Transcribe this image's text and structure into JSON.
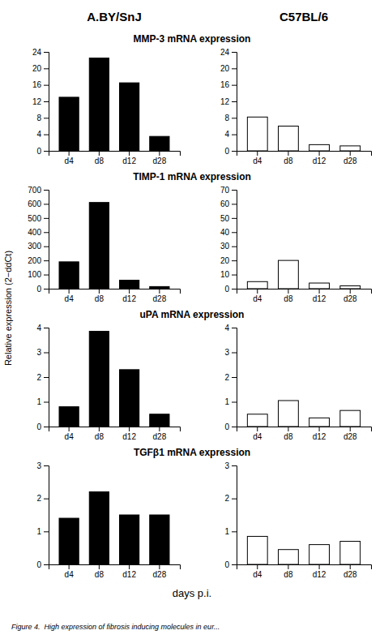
{
  "chart_data": [
    {
      "type": "bar",
      "title": "MMP-3 mRNA expression",
      "subtitle": "A.BY/SnJ",
      "ylabel": "Relative expression (2−ddCt)",
      "categories": [
        "d4",
        "d8",
        "d12",
        "d28"
      ],
      "values": [
        13.0,
        22.5,
        16.5,
        3.5
      ],
      "color": "black",
      "ylim": [
        0,
        24
      ],
      "yticks": [
        0,
        4,
        8,
        12,
        16,
        20,
        24
      ]
    },
    {
      "type": "bar",
      "subtitle": "C57BL/6",
      "categories": [
        "d4",
        "d8",
        "d12",
        "d28"
      ],
      "values": [
        8.2,
        6.0,
        1.5,
        1.2
      ],
      "color": "white",
      "ylim": [
        0,
        24
      ],
      "yticks": [
        0,
        4,
        8,
        12,
        16,
        20,
        24
      ]
    },
    {
      "type": "bar",
      "title": "TIMP-1 mRNA expression",
      "categories": [
        "d4",
        "d8",
        "d12",
        "d28"
      ],
      "values": [
        190,
        610,
        60,
        15
      ],
      "color": "black",
      "ylim": [
        0,
        700
      ],
      "yticks": [
        0,
        100,
        200,
        300,
        400,
        500,
        600,
        700
      ]
    },
    {
      "type": "bar",
      "categories": [
        "d4",
        "d8",
        "d12",
        "d28"
      ],
      "values": [
        5,
        20,
        4,
        2
      ],
      "color": "white",
      "ylim": [
        0,
        70
      ],
      "yticks": [
        0,
        10,
        20,
        30,
        40,
        50,
        60,
        70
      ]
    },
    {
      "type": "bar",
      "title": "uPA mRNA expression",
      "categories": [
        "d4",
        "d8",
        "d12",
        "d28"
      ],
      "values": [
        0.8,
        3.85,
        2.3,
        0.5
      ],
      "color": "black",
      "ylim": [
        0,
        4
      ],
      "yticks": [
        0,
        1,
        2,
        3,
        4
      ]
    },
    {
      "type": "bar",
      "categories": [
        "d4",
        "d8",
        "d12",
        "d28"
      ],
      "values": [
        0.5,
        1.05,
        0.35,
        0.65
      ],
      "color": "white",
      "ylim": [
        0,
        4
      ],
      "yticks": [
        0,
        1,
        2,
        3,
        4
      ]
    },
    {
      "type": "bar",
      "title": "TGFβ1 mRNA expression",
      "xlabel": "days p.i.",
      "annotations": [
        "Figure 4.  High expression of fibrosis inducing molecules in eur..."
      ],
      "categories": [
        "d4",
        "d8",
        "d12",
        "d28"
      ],
      "values": [
        1.4,
        2.2,
        1.5,
        1.5
      ],
      "color": "black",
      "ylim": [
        0,
        3
      ],
      "yticks": [
        0,
        1,
        2,
        3
      ]
    },
    {
      "type": "bar",
      "categories": [
        "d4",
        "d8",
        "d12",
        "d28"
      ],
      "values": [
        0.85,
        0.45,
        0.6,
        0.7
      ],
      "color": "white",
      "ylim": [
        0,
        3
      ],
      "yticks": [
        0,
        1,
        2,
        3
      ]
    }
  ]
}
